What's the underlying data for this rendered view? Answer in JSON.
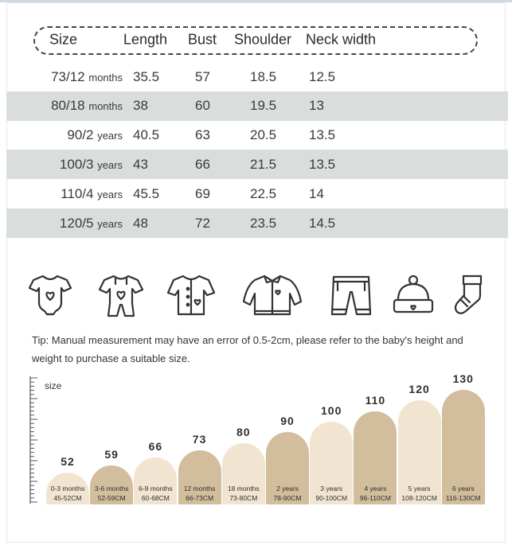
{
  "table": {
    "headers": [
      "Size",
      "Length",
      "Bust",
      "Shoulder",
      "Neck width"
    ],
    "rows": [
      {
        "size_num": "73/12",
        "size_unit": "months",
        "length": "35.5",
        "bust": "57",
        "shoulder": "18.5",
        "neck": "12.5"
      },
      {
        "size_num": "80/18",
        "size_unit": "months",
        "length": "38",
        "bust": "60",
        "shoulder": "19.5",
        "neck": "13"
      },
      {
        "size_num": "90/2",
        "size_unit": "years",
        "length": "40.5",
        "bust": "63",
        "shoulder": "20.5",
        "neck": "13.5"
      },
      {
        "size_num": "100/3",
        "size_unit": "years",
        "length": "43",
        "bust": "66",
        "shoulder": "21.5",
        "neck": "13.5"
      },
      {
        "size_num": "110/4",
        "size_unit": "years",
        "length": "45.5",
        "bust": "69",
        "shoulder": "22.5",
        "neck": "14"
      },
      {
        "size_num": "120/5",
        "size_unit": "years",
        "length": "48",
        "bust": "72",
        "shoulder": "23.5",
        "neck": "14.5"
      }
    ]
  },
  "icons": [
    "bodysuit-icon",
    "romper-icon",
    "cardigan-icon",
    "jacket-icon",
    "shorts-icon",
    "hat-icon",
    "sock-icon"
  ],
  "tip": "Tip: Manual measurement may have an error of 0.5-2cm, please refer to the baby's height and weight to purchase a suitable size.",
  "growth": {
    "axis_label": "size",
    "bars": [
      {
        "size": "52",
        "age": "0-3 months",
        "range": "45-52CM",
        "color": "#f1e5d1"
      },
      {
        "size": "59",
        "age": "3-6 months",
        "range": "52-59CM",
        "color": "#d2bd9d"
      },
      {
        "size": "66",
        "age": "6-9 months",
        "range": "60-68CM",
        "color": "#f1e5d1"
      },
      {
        "size": "73",
        "age": "12 months",
        "range": "66-73CM",
        "color": "#d2bd9d"
      },
      {
        "size": "80",
        "age": "18 months",
        "range": "73-80CM",
        "color": "#f1e5d1"
      },
      {
        "size": "90",
        "age": "2 years",
        "range": "78-90CM",
        "color": "#d2bd9d"
      },
      {
        "size": "100",
        "age": "3 years",
        "range": "90-100CM",
        "color": "#f1e5d1"
      },
      {
        "size": "110",
        "age": "4 years",
        "range": "96-110CM",
        "color": "#d2bd9d"
      },
      {
        "size": "120",
        "age": "5 years",
        "range": "108-120CM",
        "color": "#f1e5d1"
      },
      {
        "size": "130",
        "age": "6 years",
        "range": "116-130CM",
        "color": "#d2bd9d"
      }
    ]
  },
  "colors": {
    "shaded_row": "#d9dedd",
    "light_pill": "#f1e5d1",
    "dark_pill": "#d2bd9d"
  }
}
